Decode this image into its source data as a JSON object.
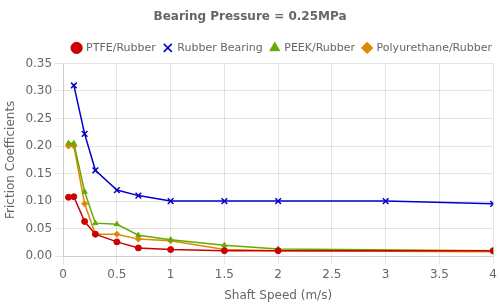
{
  "chart_data": {
    "type": "line",
    "title": "Bearing Pressure = 0.25MPa",
    "x_label": "Shaft Speed (m/s)",
    "y_label": "Friction Coefficients",
    "xlim": [
      0,
      4
    ],
    "xticks": [
      0,
      0.5,
      1,
      1.5,
      2,
      2.5,
      3,
      3.5,
      4
    ],
    "ylim": [
      0,
      0.35
    ],
    "yticks": [
      {
        "value": 0,
        "label": "0.00"
      },
      0.05,
      {
        "value": 0.1,
        "label": "0.10"
      },
      0.15,
      {
        "value": 0.2,
        "label": "0.20"
      },
      0.25,
      {
        "value": 0.3,
        "label": "0.30"
      },
      0.35
    ],
    "grid": true,
    "legend": "upper right",
    "series": [
      {
        "name": "PTFE/Rubber",
        "color": "#cc0000",
        "marker": "circle",
        "line_style": "solid",
        "x": [
          0.05,
          0.1,
          0.2,
          0.3,
          0.5,
          0.7,
          1.0,
          1.5,
          2.0,
          4.0
        ],
        "values": [
          0.107,
          0.108,
          0.063,
          0.04,
          0.026,
          0.015,
          0.012,
          0.01,
          0.01,
          0.01
        ]
      },
      {
        "name": "Rubber Bearing",
        "color": "#0000cc",
        "marker": "x",
        "line_style": "solid",
        "x": [
          0.1,
          0.2,
          0.3,
          0.5,
          0.7,
          1.0,
          1.5,
          2.0,
          3.0,
          4.0
        ],
        "values": [
          0.31,
          0.222,
          0.156,
          0.12,
          0.11,
          0.1,
          0.1,
          0.1,
          0.1,
          0.095
        ]
      },
      {
        "name": "PEEK/Rubber",
        "color": "#66aa00",
        "marker": "triangle",
        "line_style": "solid",
        "x": [
          0.05,
          0.1,
          0.2,
          0.3,
          0.5,
          0.7,
          1.0,
          1.5,
          2.0,
          4.0
        ],
        "values": [
          0.205,
          0.205,
          0.117,
          0.06,
          0.058,
          0.038,
          0.03,
          0.02,
          0.013,
          0.01
        ]
      },
      {
        "name": "Polyurethane/Rubber",
        "color": "#dd8800",
        "marker": "diamond",
        "line_style": "solid",
        "x": [
          0.05,
          0.1,
          0.2,
          0.3,
          0.5,
          0.7,
          1.0,
          1.5,
          2.0,
          4.0
        ],
        "values": [
          0.2,
          0.2,
          0.095,
          0.04,
          0.04,
          0.031,
          0.028,
          0.012,
          0.01,
          0.008
        ]
      }
    ]
  }
}
